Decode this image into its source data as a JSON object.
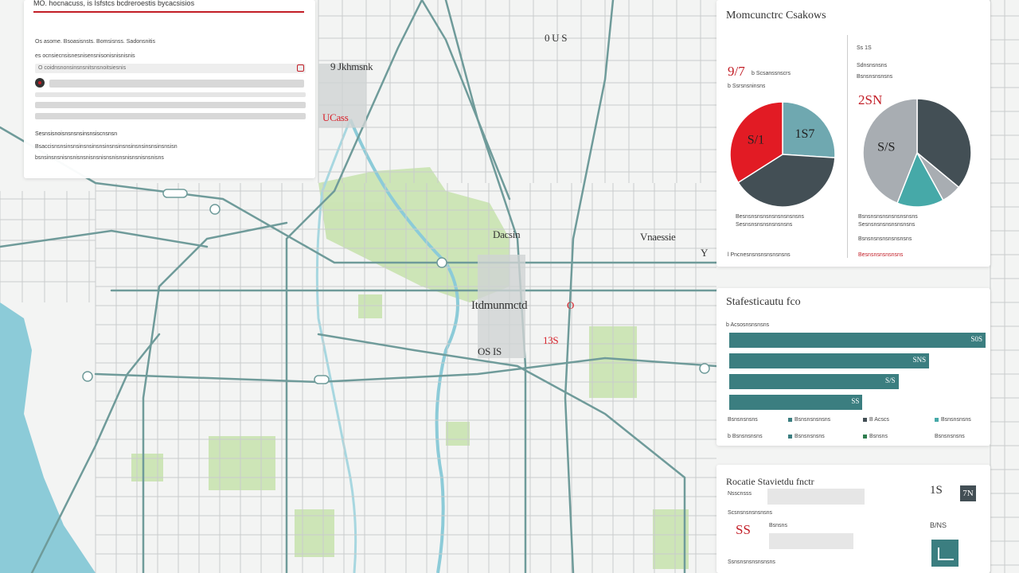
{
  "colors": {
    "teal": "#3b7e80",
    "slate": "#434f55",
    "red": "#e21b24",
    "light_teal": "#6fa8b0",
    "grey": "#a8adb2",
    "cyan": "#46a9a8",
    "park": "#c6e2ab",
    "water": "#8ccbd8"
  },
  "map_labels": [
    {
      "text": "0 U S",
      "color": "dark"
    },
    {
      "text": "9 Jkhmsnk",
      "color": "dark"
    },
    {
      "text": "UCass",
      "color": "red"
    },
    {
      "text": "Dacsin",
      "color": "dark"
    },
    {
      "text": "Vnaessie",
      "color": "dark"
    },
    {
      "text": "Itdmunmctd",
      "color": "dark"
    },
    {
      "text": "O",
      "color": "red"
    },
    {
      "text": "OS IS",
      "color": "dark"
    },
    {
      "text": "13S",
      "color": "red"
    },
    {
      "text": "Y",
      "color": "dark"
    }
  ],
  "info_panel": {
    "title": "MÓ. hocnacuss, is Isfstcs bcdreroestis bycacsisios",
    "subtitle": "Os  asome.  Bsoasisnsts.  Bomsisnss.  Sadonsnitis",
    "line2": "es ocnsiecnsisnesnisensnisonisnisnisnis",
    "search_text": "O coidnsnonsinsnsnitsnsnoitsiesnis",
    "section": "Sesnsisnoisnsnsnsinsnsiscnsnsn",
    "text1": "Bsaccisnsnsinsnsinsnsinsnsinsnsinsnsinsnsinsnsinsnsisn",
    "text2": "bsnsinsnsnisnsnisnsnisnsnisnsnisnsnisnsnisnsnisns"
  },
  "pie_panel": {
    "title": "Momcunctrc Csakows",
    "left": {
      "label1": "9/7",
      "label2": "b Scsanssnscrs",
      "label3": "b Ssrsnsninsns",
      "legend1": "Besnsnsnsnsnsnsnsnsnsns",
      "legend2": "Sesnsnsnsnsnsnsnsns",
      "footer": "l Pncnesnsnsnsnsnsnsns"
    },
    "right": {
      "label1": "Ss 1S",
      "label2": "Sdnsnsnsns",
      "label3": "Bsnsnsnsnsns",
      "big": "2SN",
      "legend1": "Bsnsnsnsnsnsnsnsnsns",
      "legend2": "Sesnsnsnsnsnsnsnsns",
      "legend3": "Bsnsnsnsnsnsnsnsns",
      "footer": "Besnsnsnsnsnsns"
    }
  },
  "bar_panel": {
    "title": "Stafesticautu fco",
    "subtitle": "b Acsosnsnsnsns",
    "legend": [
      {
        "row": [
          "Bsnsnsnsns",
          "Bsnsnsnsnsns",
          "B Acscs",
          "Bsnsnsnsns"
        ]
      },
      {
        "row": [
          "b Bsnsnsnsns",
          "Bsnsnsnsns",
          "Bsnsns",
          "Bsnsnsnsns"
        ]
      }
    ]
  },
  "stats_panel": {
    "title": "Rocatie Stavietdu fnctr",
    "row1_label": "Nsscnsss",
    "row1_value": "1S",
    "row1_badge": "7N",
    "row2_label": "Scsnsnsnsnsnsns",
    "row2_value": "SS",
    "row2_small": "Bsnsns",
    "row2_right": "B/NS",
    "row3_label": "Ssnsnsnsnsnsnsns"
  },
  "chart_data": [
    {
      "type": "pie",
      "title": "",
      "slices": [
        {
          "label": "1S7",
          "value": 26,
          "color": "#6fa8b0"
        },
        {
          "label": "",
          "value": 40,
          "color": "#434f55"
        },
        {
          "label": "S/1",
          "value": 34,
          "color": "#e21b24"
        }
      ]
    },
    {
      "type": "pie",
      "title": "",
      "slices": [
        {
          "label": "",
          "value": 36,
          "color": "#434f55"
        },
        {
          "label": "",
          "value": 6,
          "color": "#a8adb2"
        },
        {
          "label": "",
          "value": 14,
          "color": "#46a9a8"
        },
        {
          "label": "S/S",
          "value": 44,
          "color": "#a8adb2"
        }
      ]
    },
    {
      "type": "bar",
      "title": "",
      "categories": [
        "",
        "",
        "",
        ""
      ],
      "values": [
        100,
        78,
        66,
        52
      ],
      "value_labels": [
        "S0S",
        "SNS",
        "S/S",
        "SS"
      ],
      "xlim": [
        0,
        100
      ]
    }
  ]
}
